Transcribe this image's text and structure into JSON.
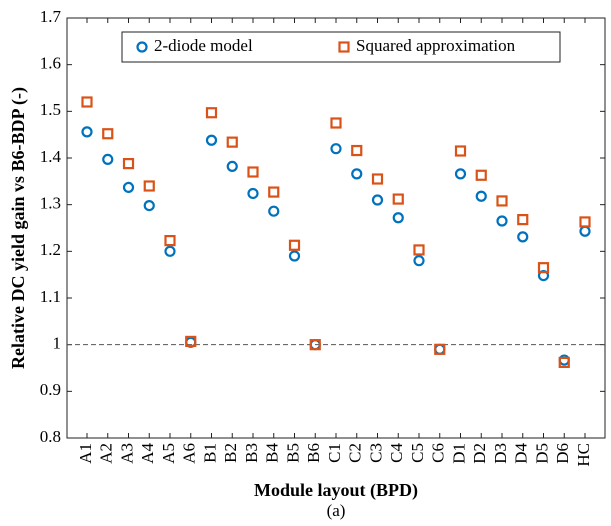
{
  "chart_data": {
    "type": "scatter",
    "ylabel": "Relative DC yield gain vs B6-BDP (-)",
    "xlabel": "Module layout (BPD)",
    "caption": "(a)",
    "categories": [
      "A1",
      "A2",
      "A3",
      "A4",
      "A5",
      "A6",
      "B1",
      "B2",
      "B3",
      "B4",
      "B5",
      "B6",
      "C1",
      "C2",
      "C3",
      "C4",
      "C5",
      "C6",
      "D1",
      "D2",
      "D3",
      "D4",
      "D5",
      "D6",
      "HC"
    ],
    "series": [
      {
        "name": "2-diode model",
        "color": "#0072BD",
        "marker": "circle",
        "values": [
          1.456,
          1.397,
          1.337,
          1.298,
          1.2,
          1.005,
          1.438,
          1.382,
          1.324,
          1.286,
          1.19,
          1.0,
          1.42,
          1.366,
          1.31,
          1.272,
          1.18,
          0.99,
          1.366,
          1.318,
          1.265,
          1.231,
          1.148,
          0.967,
          1.243
        ]
      },
      {
        "name": "Squared approximation",
        "color": "#D95319",
        "marker": "square",
        "values": [
          1.52,
          1.452,
          1.388,
          1.34,
          1.223,
          1.007,
          1.497,
          1.434,
          1.37,
          1.327,
          1.213,
          1.0,
          1.475,
          1.416,
          1.355,
          1.312,
          1.203,
          0.99,
          1.415,
          1.363,
          1.308,
          1.268,
          1.165,
          0.962,
          1.263
        ]
      }
    ],
    "ylim": [
      0.8,
      1.7
    ],
    "yticks": [
      0.8,
      0.9,
      1,
      1.1,
      1.2,
      1.3,
      1.4,
      1.5,
      1.6,
      1.7
    ],
    "hline": 1,
    "legend": "top"
  }
}
